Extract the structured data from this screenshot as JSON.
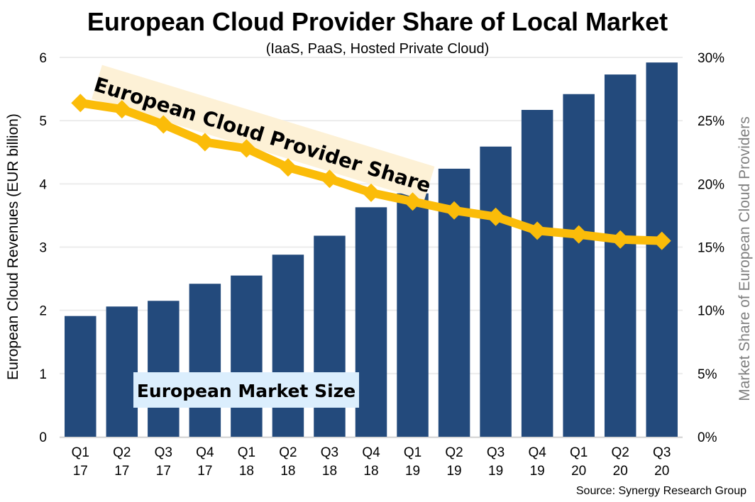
{
  "chart_data": {
    "type": "bar",
    "title": "European Cloud Provider Share of Local Market",
    "subtitle": "(IaaS, PaaS, Hosted Private Cloud)",
    "categories": [
      "Q1 17",
      "Q2 17",
      "Q3 17",
      "Q4 17",
      "Q1 18",
      "Q2 18",
      "Q3 18",
      "Q4 18",
      "Q1 19",
      "Q2 19",
      "Q3 19",
      "Q4 19",
      "Q1 20",
      "Q2 20",
      "Q3 20"
    ],
    "category_lines": [
      [
        "Q1",
        "17"
      ],
      [
        "Q2",
        "17"
      ],
      [
        "Q3",
        "17"
      ],
      [
        "Q4",
        "17"
      ],
      [
        "Q1",
        "18"
      ],
      [
        "Q2",
        "18"
      ],
      [
        "Q3",
        "18"
      ],
      [
        "Q4",
        "18"
      ],
      [
        "Q1",
        "19"
      ],
      [
        "Q2",
        "19"
      ],
      [
        "Q3",
        "19"
      ],
      [
        "Q4",
        "19"
      ],
      [
        "Q1",
        "20"
      ],
      [
        "Q2",
        "20"
      ],
      [
        "Q3",
        "20"
      ]
    ],
    "series": [
      {
        "name": "European Market Size",
        "type": "bar",
        "axis": "left",
        "color": "#234a7c",
        "values": [
          1.91,
          2.06,
          2.15,
          2.42,
          2.55,
          2.88,
          3.18,
          3.63,
          3.85,
          4.24,
          4.59,
          5.17,
          5.42,
          5.73,
          5.92
        ]
      },
      {
        "name": "European Cloud Provider Share",
        "type": "line",
        "axis": "right",
        "color": "#fbbc09",
        "marker": "diamond",
        "values": [
          26.4,
          25.9,
          24.7,
          23.3,
          22.8,
          21.3,
          20.4,
          19.3,
          18.6,
          17.9,
          17.4,
          16.3,
          16.0,
          15.6,
          15.5
        ]
      }
    ],
    "ylabel": "European Cloud Revenues (EUR billion)",
    "ylim": [
      0,
      6
    ],
    "yticks": [
      "0",
      "1",
      "2",
      "3",
      "4",
      "5",
      "6"
    ],
    "y2label": "Market Share of European Cloud Providers",
    "y2lim": [
      0,
      30
    ],
    "y2ticks": [
      "0%",
      "5%",
      "10%",
      "15%",
      "20%",
      "25%",
      "30%"
    ],
    "grid": true,
    "annotations": [
      {
        "text": "European Cloud Provider Share",
        "background": "#fdf1d6",
        "placement": "upper-left, rotated along line"
      },
      {
        "text": "European Market Size",
        "background": "#dbeefd",
        "placement": "lower-left"
      }
    ],
    "source": "Source: Synergy Research Group"
  }
}
